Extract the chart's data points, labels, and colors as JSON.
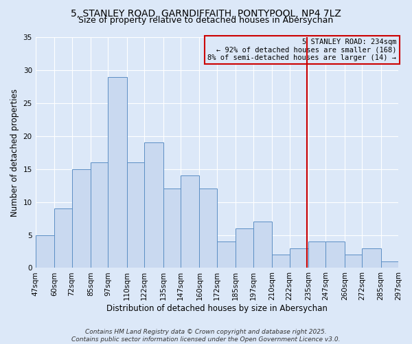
{
  "title": "5, STANLEY ROAD, GARNDIFFAITH, PONTYPOOL, NP4 7LZ",
  "subtitle": "Size of property relative to detached houses in Abersychan",
  "xlabel": "Distribution of detached houses by size in Abersychan",
  "ylabel": "Number of detached properties",
  "bin_edges": [
    47,
    60,
    72,
    85,
    97,
    110,
    122,
    135,
    147,
    160,
    172,
    185,
    197,
    210,
    222,
    235,
    247,
    260,
    272,
    285,
    297
  ],
  "counts": [
    5,
    9,
    15,
    16,
    29,
    16,
    19,
    12,
    14,
    12,
    4,
    6,
    7,
    2,
    3,
    4,
    4,
    2,
    3,
    1
  ],
  "bar_color": "#c9d9f0",
  "bar_edge_color": "#5b8ec4",
  "vline_x": 234,
  "vline_color": "#cc0000",
  "annotation_box_text": "5 STANLEY ROAD: 234sqm\n← 92% of detached houses are smaller (168)\n8% of semi-detached houses are larger (14) →",
  "annotation_box_color": "#cc0000",
  "ylim": [
    0,
    35
  ],
  "yticks": [
    0,
    5,
    10,
    15,
    20,
    25,
    30,
    35
  ],
  "background_color": "#dce8f8",
  "plot_bg_color": "#dce8f8",
  "grid_color": "#ffffff",
  "footer_line1": "Contains HM Land Registry data © Crown copyright and database right 2025.",
  "footer_line2": "Contains public sector information licensed under the Open Government Licence v3.0.",
  "title_fontsize": 10,
  "subtitle_fontsize": 9,
  "axis_label_fontsize": 8.5,
  "tick_fontsize": 7.5,
  "annotation_fontsize": 7.5,
  "footer_fontsize": 6.5
}
